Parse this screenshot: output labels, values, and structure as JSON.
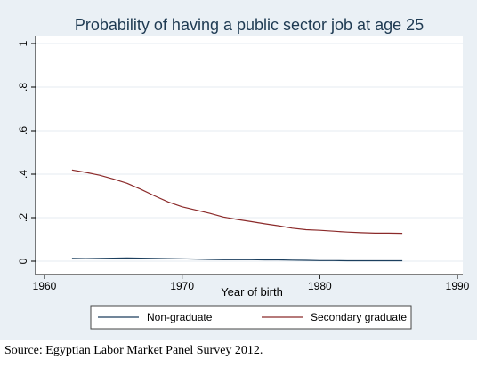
{
  "chart_data": {
    "type": "line",
    "title": "Probability of having a public sector job at age 25",
    "xlabel": "Year of birth",
    "ylabel": "",
    "xlim": [
      1960,
      1990
    ],
    "ylim": [
      0,
      1
    ],
    "x_ticks": [
      1960,
      1970,
      1980,
      1990
    ],
    "x_tick_labels": [
      "1960",
      "1970",
      "1980",
      "1990"
    ],
    "y_ticks": [
      0,
      0.2,
      0.4,
      0.6,
      0.8,
      1
    ],
    "y_tick_labels": [
      "0",
      ".2",
      ".4",
      ".6",
      ".8",
      "1"
    ],
    "grid": "horizontal",
    "legend": {
      "position": "bottom",
      "entries": [
        "Non-graduate",
        "Secondary graduate"
      ]
    },
    "series": [
      {
        "name": "Non-graduate",
        "color": "#1c3f5e",
        "x": [
          1962,
          1963,
          1964,
          1965,
          1966,
          1967,
          1968,
          1969,
          1970,
          1971,
          1972,
          1973,
          1974,
          1975,
          1976,
          1977,
          1978,
          1979,
          1980,
          1981,
          1982,
          1983,
          1984,
          1985,
          1986
        ],
        "values": [
          0.013,
          0.012,
          0.013,
          0.014,
          0.015,
          0.014,
          0.013,
          0.012,
          0.011,
          0.01,
          0.008,
          0.007,
          0.007,
          0.007,
          0.006,
          0.006,
          0.005,
          0.004,
          0.003,
          0.003,
          0.002,
          0.002,
          0.002,
          0.002,
          0.002
        ]
      },
      {
        "name": "Secondary graduate",
        "color": "#8b2a2a",
        "x": [
          1962,
          1963,
          1964,
          1965,
          1966,
          1967,
          1968,
          1969,
          1970,
          1971,
          1972,
          1973,
          1974,
          1975,
          1976,
          1977,
          1978,
          1979,
          1980,
          1981,
          1982,
          1983,
          1984,
          1985,
          1986
        ],
        "values": [
          0.419,
          0.408,
          0.395,
          0.378,
          0.358,
          0.33,
          0.3,
          0.272,
          0.25,
          0.235,
          0.22,
          0.203,
          0.192,
          0.182,
          0.172,
          0.163,
          0.152,
          0.145,
          0.142,
          0.138,
          0.134,
          0.131,
          0.129,
          0.129,
          0.128
        ]
      }
    ]
  },
  "source_note": "Source: Egyptian Labor Market Panel Survey 2012.",
  "colors": {
    "outer_background": "#eaf0f5",
    "plot_background": "#ffffff",
    "grid": "#e4ebf1",
    "title_text": "#1e3a52"
  }
}
